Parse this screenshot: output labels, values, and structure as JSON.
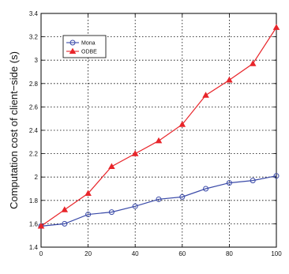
{
  "chart_data": {
    "type": "line",
    "title": "",
    "xlabel": "",
    "ylabel": "Computation cost of client−side (s)",
    "xlim": [
      0,
      100
    ],
    "ylim": [
      1.4,
      3.4
    ],
    "x_ticks": [
      0,
      20,
      40,
      60,
      80,
      100
    ],
    "y_ticks": [
      1.4,
      1.6,
      1.8,
      2,
      2.2,
      2.4,
      2.6,
      2.8,
      3,
      3.2,
      3.4
    ],
    "x_tick_labels": [
      "0",
      "20",
      "40",
      "60",
      "80",
      "100"
    ],
    "y_tick_labels": [
      "1.4",
      "1.6",
      "1.8",
      "2",
      "2.2",
      "2.4",
      "2.6",
      "2.8",
      "3",
      "3.2",
      "3.4"
    ],
    "grid": true,
    "legend_position": "top-left",
    "x": [
      0,
      10,
      20,
      30,
      40,
      50,
      60,
      70,
      80,
      90,
      100
    ],
    "series": [
      {
        "name": "Mona",
        "marker": "circle",
        "color": "#3a4aa8",
        "values": [
          1.58,
          1.6,
          1.68,
          1.7,
          1.75,
          1.81,
          1.83,
          1.9,
          1.95,
          1.97,
          2.01
        ]
      },
      {
        "name": "ODBE",
        "marker": "triangle",
        "color": "#e8252a",
        "values": [
          1.58,
          1.72,
          1.86,
          2.09,
          2.2,
          2.31,
          2.45,
          2.7,
          2.83,
          2.97,
          3.28
        ]
      }
    ]
  }
}
